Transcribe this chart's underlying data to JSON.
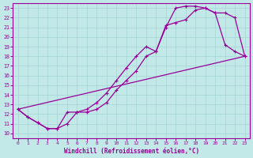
{
  "xlabel": "Windchill (Refroidissement éolien,°C)",
  "xlim": [
    -0.5,
    23.5
  ],
  "ylim": [
    9.5,
    23.5
  ],
  "xticks": [
    0,
    1,
    2,
    3,
    4,
    5,
    6,
    7,
    8,
    9,
    10,
    11,
    12,
    13,
    14,
    15,
    16,
    17,
    18,
    19,
    20,
    21,
    22,
    23
  ],
  "yticks": [
    10,
    11,
    12,
    13,
    14,
    15,
    16,
    17,
    18,
    19,
    20,
    21,
    22,
    23
  ],
  "bg_color": "#c2e8e8",
  "line_color": "#990099",
  "grid_color": "#a8d8d8",
  "line1": {
    "x": [
      0,
      1,
      2,
      3,
      4,
      5,
      6,
      7,
      8,
      9,
      10,
      11,
      12,
      13,
      14,
      15,
      16,
      17,
      18,
      19,
      20,
      21,
      22,
      23
    ],
    "y": [
      12.5,
      11.7,
      11.1,
      10.5,
      10.5,
      11.0,
      12.2,
      12.2,
      12.5,
      13.2,
      14.5,
      15.5,
      16.5,
      18.0,
      18.5,
      21.0,
      23.0,
      23.2,
      23.2,
      23.0,
      22.5,
      19.2,
      18.5,
      18.0
    ]
  },
  "line2": {
    "x": [
      0,
      1,
      2,
      3,
      4,
      5,
      6,
      7,
      8,
      9,
      10,
      11,
      12,
      13,
      14,
      15,
      16,
      17,
      18,
      19,
      20,
      21,
      22,
      23
    ],
    "y": [
      12.5,
      11.7,
      11.1,
      10.5,
      10.5,
      12.2,
      12.2,
      12.5,
      13.2,
      14.2,
      15.5,
      16.8,
      18.0,
      19.0,
      18.5,
      21.2,
      21.5,
      21.8,
      22.8,
      23.0,
      22.5,
      22.5,
      22.0,
      18.0
    ]
  },
  "line3": {
    "x": [
      0,
      23
    ],
    "y": [
      12.5,
      18.0
    ]
  }
}
